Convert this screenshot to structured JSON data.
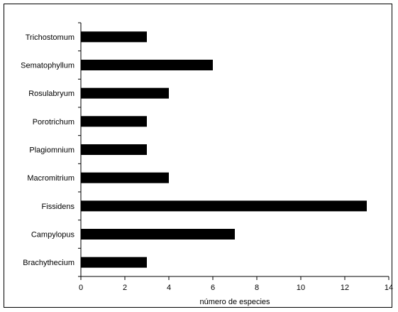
{
  "chart_data": {
    "type": "bar",
    "orientation": "horizontal",
    "title": "",
    "xlabel": "número de especies",
    "ylabel": "",
    "categories": [
      "Trichostomum",
      "Sematophyllum",
      "Rosulabryum",
      "Porotrichum",
      "Plagiomnium",
      "Macromitrium",
      "Fissidens",
      "Campylopus",
      "Brachythecium"
    ],
    "values": [
      3,
      6,
      4,
      3,
      3,
      4,
      13,
      7,
      3
    ],
    "xlim": [
      0,
      14
    ],
    "xticks": [
      "0",
      "2",
      "4",
      "6",
      "8",
      "10",
      "12",
      "14"
    ],
    "grid": false,
    "legend": "none",
    "bar_color": "#000000"
  }
}
